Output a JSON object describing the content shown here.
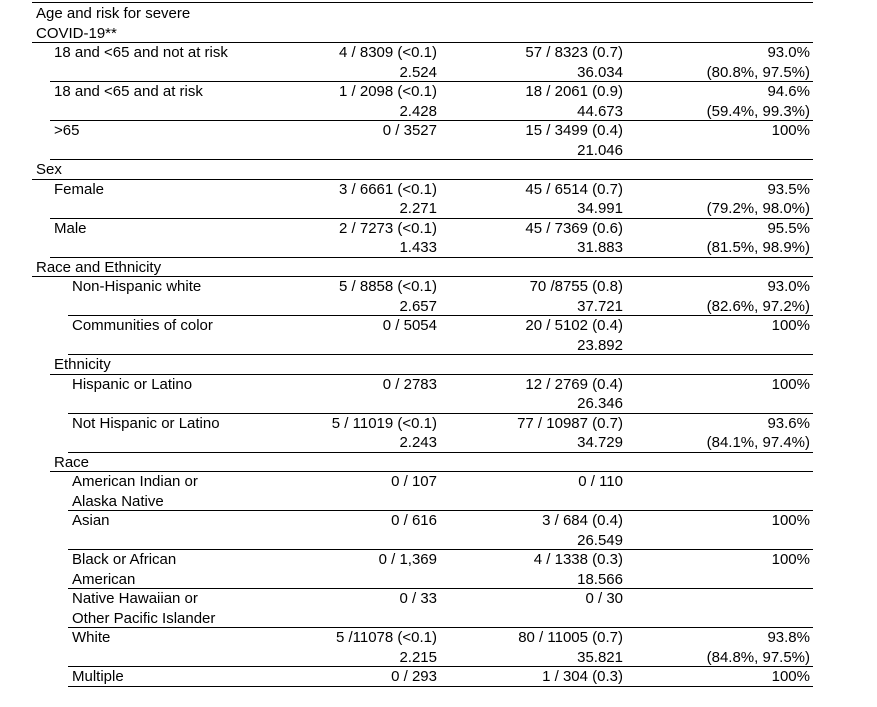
{
  "table": {
    "rows": [
      {
        "label": [
          "Age and risk for severe",
          "COVID-19**"
        ]
      },
      {
        "label": [
          "18 and <65 and not at risk"
        ],
        "cells": [
          [
            "4 / 8309 (<0.1)",
            "2.524"
          ],
          [
            "57 / 8323 (0.7)",
            "36.034"
          ],
          [
            "93.0%",
            "(80.8%, 97.5%)"
          ]
        ]
      },
      {
        "label": [
          "18 and <65 and at risk"
        ],
        "cells": [
          [
            "1 / 2098 (<0.1)",
            "2.428"
          ],
          [
            "18 / 2061 (0.9)",
            "44.673"
          ],
          [
            "94.6%",
            "(59.4%, 99.3%)"
          ]
        ]
      },
      {
        "label": [
          ">65"
        ],
        "cells": [
          [
            "0 / 3527"
          ],
          [
            "15 / 3499 (0.4)",
            "21.046"
          ],
          [
            "100%"
          ]
        ]
      },
      {
        "label": [
          "Sex"
        ]
      },
      {
        "label": [
          "Female"
        ],
        "cells": [
          [
            "3 / 6661 (<0.1)",
            "2.271"
          ],
          [
            "45 / 6514 (0.7)",
            "34.991"
          ],
          [
            "93.5%",
            "(79.2%, 98.0%)"
          ]
        ]
      },
      {
        "label": [
          "Male"
        ],
        "cells": [
          [
            "2 / 7273 (<0.1)",
            "1.433"
          ],
          [
            "45 / 7369 (0.6)",
            "31.883"
          ],
          [
            "95.5%",
            "(81.5%, 98.9%)"
          ]
        ]
      },
      {
        "label": [
          "Race and Ethnicity"
        ]
      },
      {
        "label": [
          "Non-Hispanic white"
        ],
        "cells": [
          [
            "5 / 8858 (<0.1)",
            "2.657"
          ],
          [
            "70 /8755 (0.8)",
            "37.721"
          ],
          [
            "93.0%",
            "(82.6%, 97.2%)"
          ]
        ]
      },
      {
        "label": [
          "Communities of color"
        ],
        "cells": [
          [
            "0 / 5054"
          ],
          [
            "20 / 5102 (0.4)",
            "23.892"
          ],
          [
            "100%"
          ]
        ]
      },
      {
        "label": [
          "Ethnicity"
        ]
      },
      {
        "label": [
          "Hispanic or Latino"
        ],
        "cells": [
          [
            "0 / 2783"
          ],
          [
            "12 / 2769 (0.4)",
            "26.346"
          ],
          [
            "100%"
          ]
        ]
      },
      {
        "label": [
          "Not Hispanic or Latino"
        ],
        "cells": [
          [
            "5 / 11019 (<0.1)",
            "2.243"
          ],
          [
            "77 / 10987 (0.7)",
            "34.729"
          ],
          [
            "93.6%",
            "(84.1%, 97.4%)"
          ]
        ]
      },
      {
        "label": [
          "Race"
        ]
      },
      {
        "label": [
          "American Indian or",
          "Alaska Native"
        ],
        "cells": [
          [
            "0 / 107"
          ],
          [
            "0 / 110"
          ]
        ]
      },
      {
        "label": [
          "Asian"
        ],
        "cells": [
          [
            "0 / 616"
          ],
          [
            "3 / 684 (0.4)",
            "26.549"
          ],
          [
            "100%"
          ]
        ]
      },
      {
        "label": [
          "Black or African",
          "American"
        ],
        "cells": [
          [
            "0 / 1,369"
          ],
          [
            "4 / 1338 (0.3)",
            "18.566"
          ],
          [
            "100%"
          ]
        ]
      },
      {
        "label": [
          "Native Hawaiian or",
          "Other Pacific Islander"
        ],
        "cells": [
          [
            "0 / 33"
          ],
          [
            "0 / 30"
          ]
        ]
      },
      {
        "label": [
          "White"
        ],
        "cells": [
          [
            "5 /11078 (<0.1)",
            "2.215"
          ],
          [
            "80 / 11005 (0.7)",
            "35.821"
          ],
          [
            "93.8%",
            "(84.8%, 97.5%)"
          ]
        ]
      },
      {
        "label": [
          "Multiple"
        ],
        "cells": [
          [
            "0 / 293"
          ],
          [
            "1 / 304 (0.3)"
          ],
          [
            "100%"
          ]
        ]
      }
    ]
  }
}
